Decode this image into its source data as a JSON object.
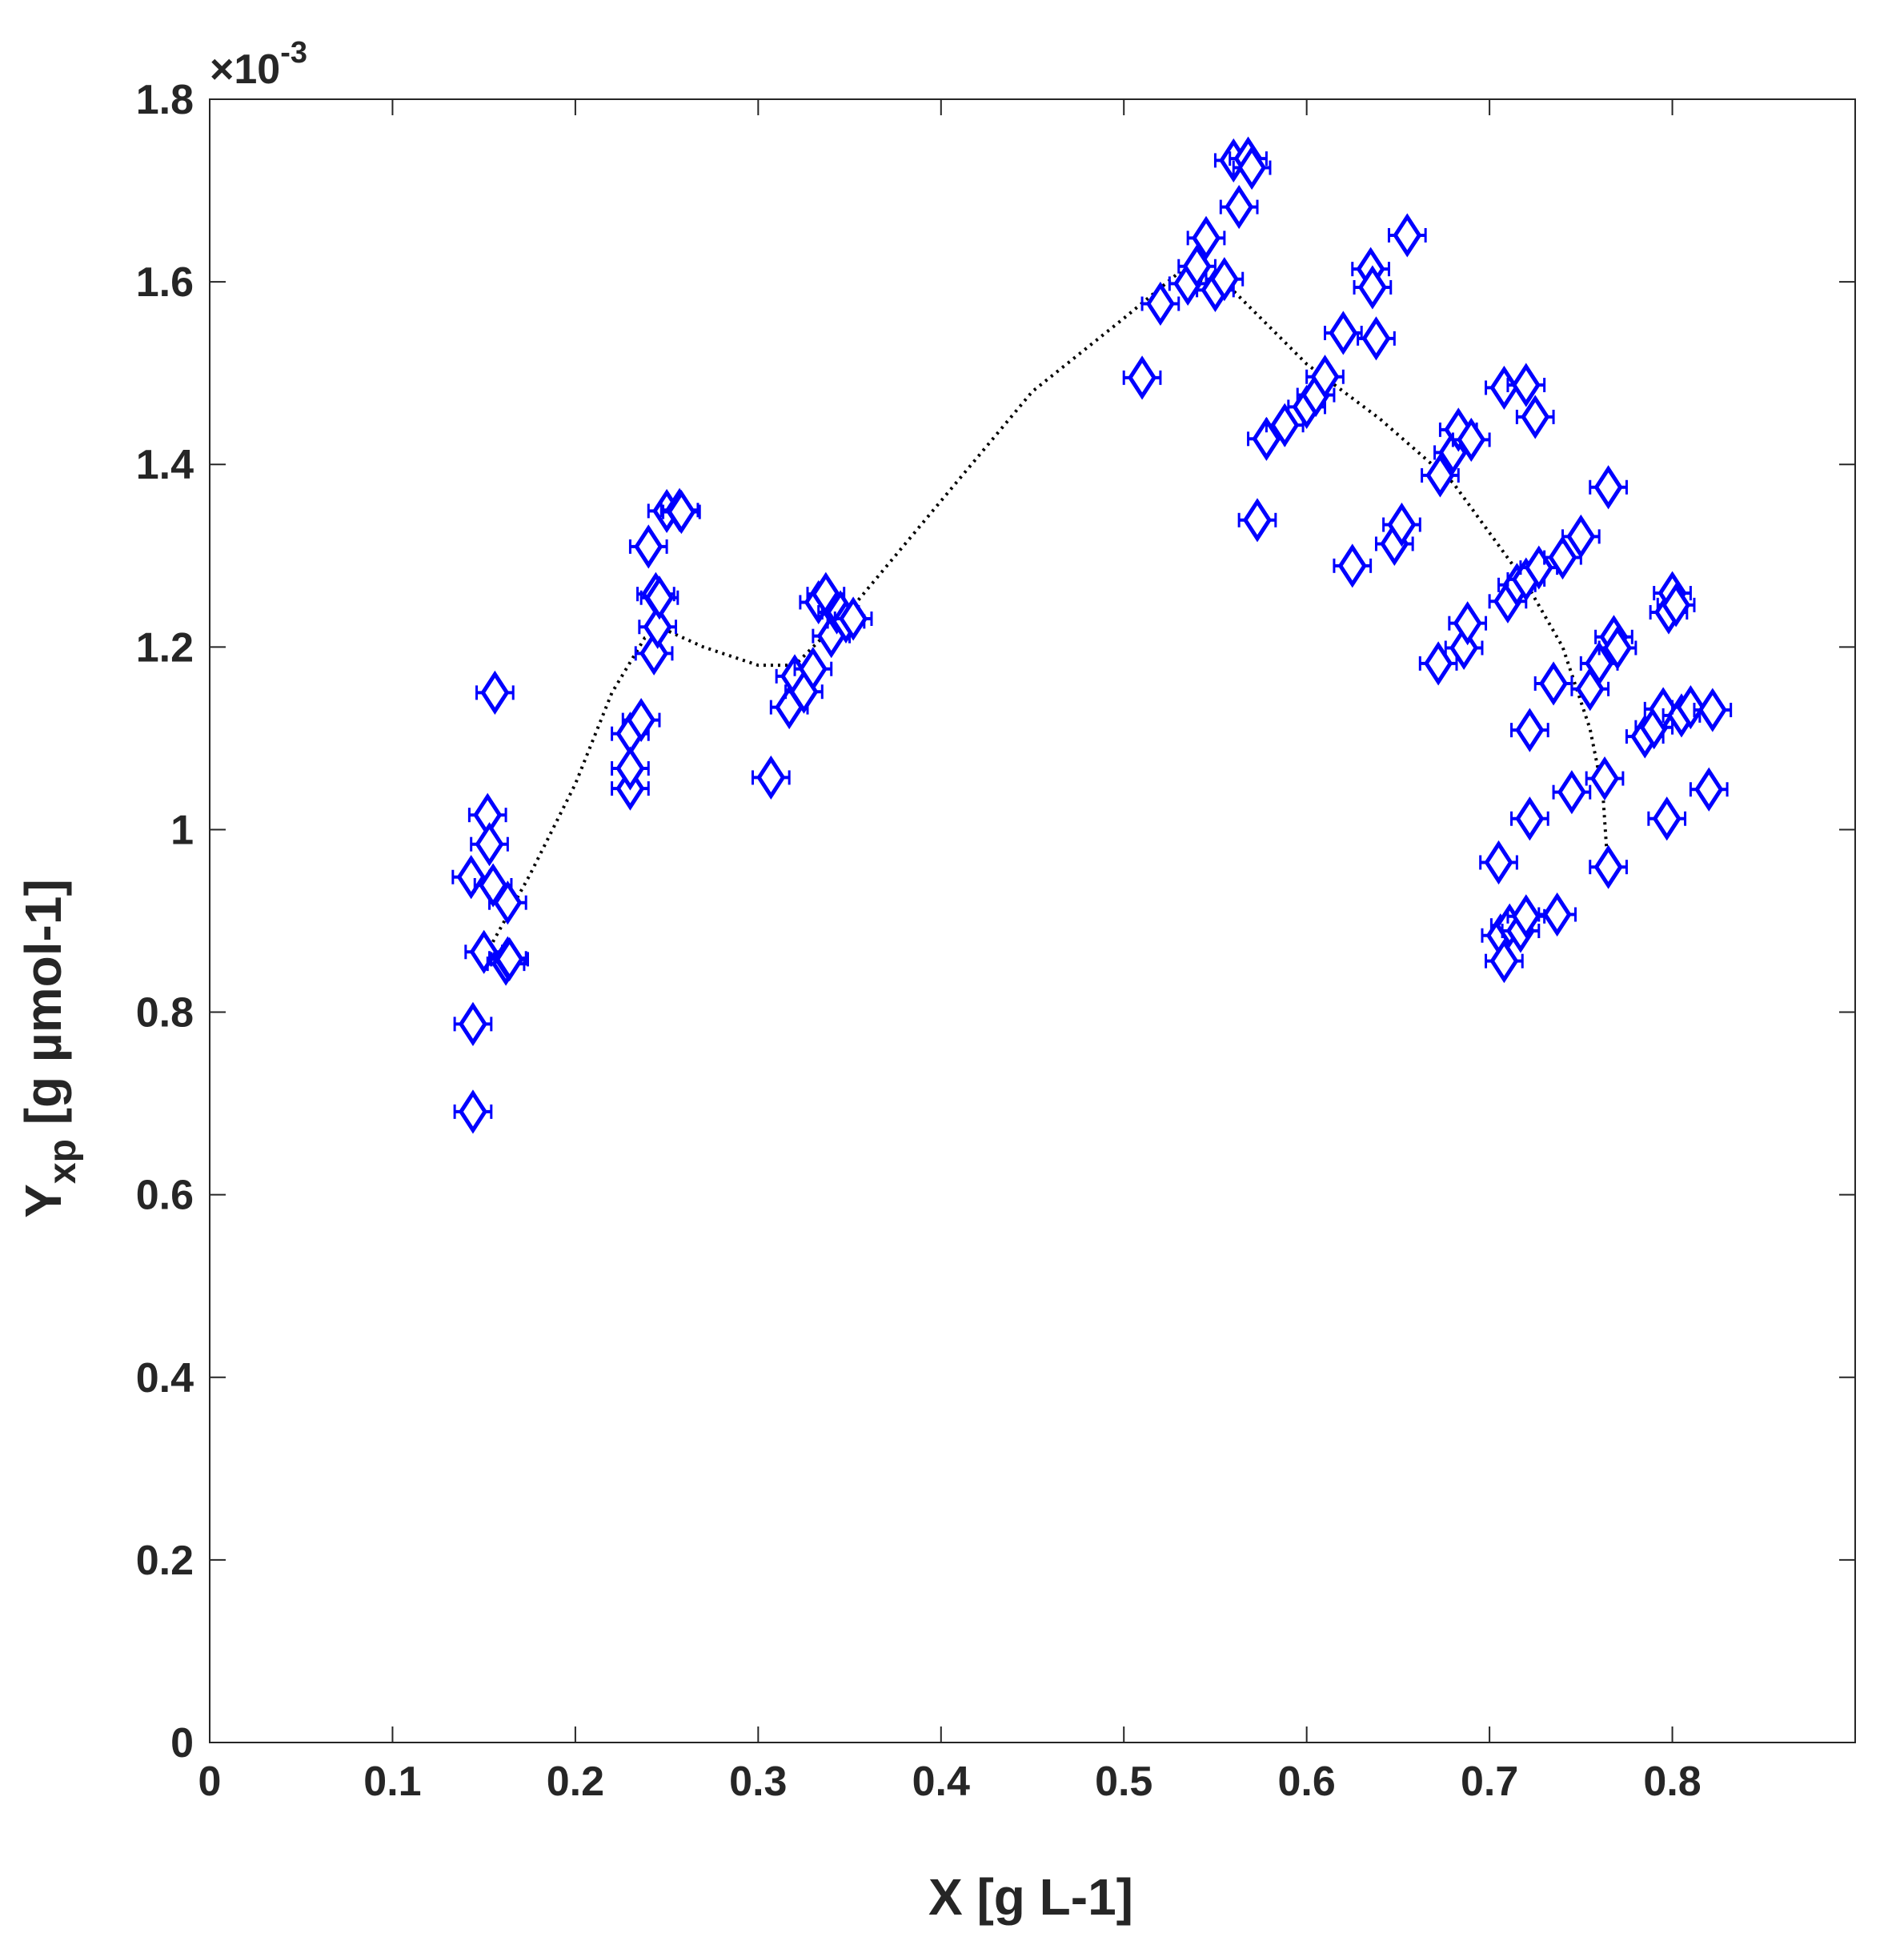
{
  "chart_data": {
    "type": "scatter",
    "title": "",
    "xlabel": "X [g L-1]",
    "ylabel_parts": {
      "main": "Y",
      "sub": "xp",
      "rest": " [g µmol-1]"
    },
    "y_exponent_label": {
      "base": "×10",
      "exp": "-3"
    },
    "xlim": [
      0,
      0.9
    ],
    "ylim": [
      0,
      0.0018
    ],
    "xticks": [
      0,
      0.1,
      0.2,
      0.3,
      0.4,
      0.5,
      0.6,
      0.7,
      0.8
    ],
    "xtick_labels": [
      "0",
      "0.1",
      "0.2",
      "0.3",
      "0.4",
      "0.5",
      "0.6",
      "0.7",
      "0.8"
    ],
    "yticks": [
      0,
      0.0002,
      0.0004,
      0.0006,
      0.0008,
      0.001,
      0.0012,
      0.0014,
      0.0016,
      0.0018
    ],
    "ytick_labels": [
      "0",
      "0.2",
      "0.4",
      "0.6",
      "0.8",
      "1",
      "1.2",
      "1.4",
      "1.6",
      "1.8"
    ],
    "grid": false,
    "marker_color": "#0000ff",
    "line_color": "#000000",
    "error_bar_half_width": 0.01,
    "error_bar_half_height": 2e-05,
    "series": [
      {
        "type": "scatter",
        "marker": "diamond",
        "x": [
          0.143,
          0.144,
          0.144,
          0.15,
          0.152,
          0.153,
          0.155,
          0.156,
          0.162,
          0.163,
          0.163,
          0.164,
          0.23,
          0.23,
          0.23,
          0.236,
          0.24,
          0.243,
          0.244,
          0.245,
          0.246,
          0.25,
          0.257,
          0.258,
          0.307,
          0.317,
          0.32,
          0.325,
          0.33,
          0.333,
          0.337,
          0.34,
          0.343,
          0.345,
          0.348,
          0.352,
          0.51,
          0.52,
          0.535,
          0.54,
          0.545,
          0.55,
          0.555,
          0.56,
          0.563,
          0.568,
          0.57,
          0.573,
          0.578,
          0.588,
          0.6,
          0.605,
          0.61,
          0.62,
          0.625,
          0.635,
          0.636,
          0.638,
          0.648,
          0.652,
          0.655,
          0.672,
          0.673,
          0.68,
          0.683,
          0.686,
          0.688,
          0.69,
          0.705,
          0.706,
          0.708,
          0.708,
          0.71,
          0.711,
          0.715,
          0.717,
          0.72,
          0.72,
          0.72,
          0.722,
          0.722,
          0.725,
          0.727,
          0.735,
          0.737,
          0.74,
          0.745,
          0.75,
          0.755,
          0.76,
          0.763,
          0.765,
          0.765,
          0.768,
          0.77,
          0.785,
          0.79,
          0.795,
          0.797,
          0.798,
          0.8,
          0.802,
          0.805,
          0.81,
          0.82,
          0.822
        ],
        "y": [
          0.000948,
          0.000691,
          0.000787,
          0.000866,
          0.001016,
          0.000984,
          0.000939,
          0.00115,
          0.000853,
          0.000859,
          0.00092,
          0.000858,
          0.001105,
          0.001045,
          0.001067,
          0.00112,
          0.00131,
          0.001193,
          0.001258,
          0.001222,
          0.001254,
          0.001349,
          0.00135,
          0.001348,
          0.001057,
          0.001134,
          0.001168,
          0.001151,
          0.001176,
          0.001249,
          0.001258,
          0.001212,
          0.001238,
          0.001238,
          0.001228,
          0.001231,
          0.001495,
          0.001576,
          0.001598,
          0.001617,
          0.001648,
          0.001591,
          0.001603,
          0.001733,
          0.001682,
          0.001735,
          0.001725,
          0.001339,
          0.001428,
          0.001443,
          0.001463,
          0.001476,
          0.001496,
          0.001544,
          0.001289,
          0.001614,
          0.001594,
          0.001538,
          0.001313,
          0.001334,
          0.001651,
          0.001182,
          0.001388,
          0.001413,
          0.001438,
          0.001199,
          0.001226,
          0.001427,
          0.000964,
          0.000884,
          0.000856,
          0.001484,
          0.00125,
          0.000895,
          0.001268,
          0.000889,
          0.000905,
          0.001274,
          0.001487,
          0.001012,
          0.001109,
          0.001452,
          0.001287,
          0.00116,
          0.000907,
          0.001298,
          0.001041,
          0.001321,
          0.001154,
          0.001182,
          0.001056,
          0.000959,
          0.001375,
          0.001211,
          0.001199,
          0.001102,
          0.001112,
          0.001132,
          0.001012,
          0.001238,
          0.001259,
          0.001246,
          0.001125,
          0.001134,
          0.001044,
          0.001131
        ]
      },
      {
        "type": "line",
        "style": "dotted",
        "x": [
          0.153,
          0.175,
          0.2,
          0.22,
          0.238,
          0.248,
          0.27,
          0.3,
          0.32,
          0.35,
          0.4,
          0.45,
          0.5,
          0.53,
          0.56,
          0.6,
          0.64,
          0.68,
          0.72,
          0.74,
          0.755,
          0.762,
          0.765
        ],
        "y": [
          0.00087,
          0.00095,
          0.00105,
          0.00115,
          0.00121,
          0.00122,
          0.0012,
          0.00118,
          0.00118,
          0.00124,
          0.00136,
          0.00148,
          0.00156,
          0.00161,
          0.00159,
          0.00151,
          0.00145,
          0.00138,
          0.00127,
          0.0012,
          0.00111,
          0.00104,
          0.00095
        ]
      }
    ]
  }
}
